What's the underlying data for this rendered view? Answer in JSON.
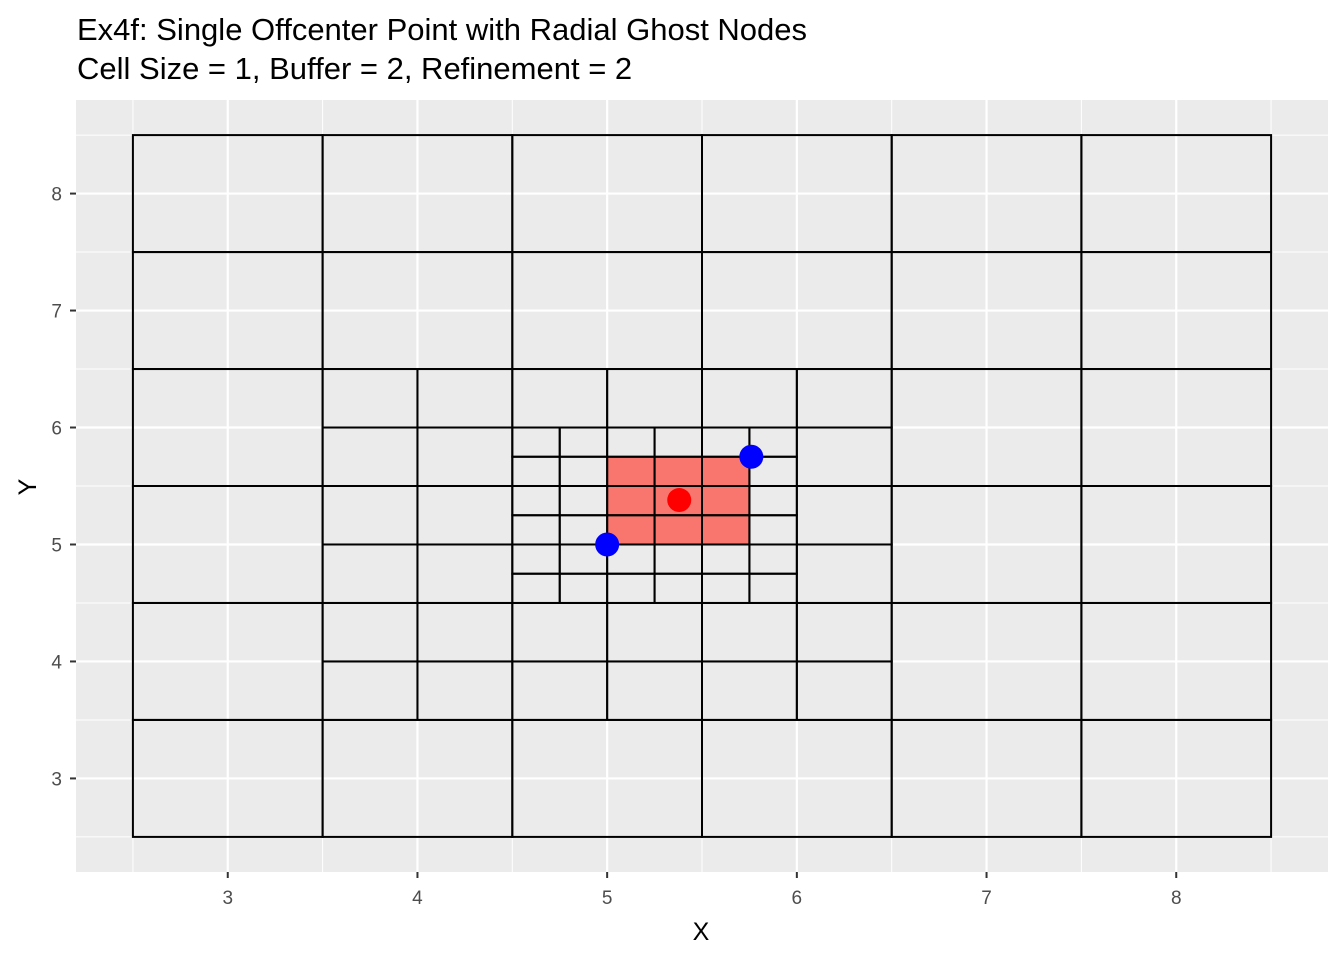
{
  "chart_data": {
    "type": "scatter",
    "title": "Ex4f: Single Offcenter Point with Radial Ghost Nodes",
    "subtitle": "Cell Size = 1, Buffer = 2, Refinement = 2",
    "xlabel": "X",
    "ylabel": "Y",
    "xlim": [
      2.2,
      8.8
    ],
    "ylim": [
      2.2,
      8.8
    ],
    "x_ticks": [
      3,
      4,
      5,
      6,
      7,
      8
    ],
    "y_ticks": [
      3,
      4,
      5,
      6,
      7,
      8
    ],
    "grid": true,
    "colors": {
      "panel_background": "#ebebeb",
      "gridline": "#ffffff",
      "cell_outline": "#000000",
      "highlight_fill": "#f8766d",
      "point": "#ff0000",
      "ghost_node": "#0000ff"
    },
    "cell_levels": [
      {
        "size": 1,
        "x_start": 2.5,
        "y_start": 2.5,
        "cols": 6,
        "rows": 6,
        "skip": [
          3.5,
          6.5,
          3.5,
          6.5
        ]
      },
      {
        "size": 0.5,
        "x_start": 3.5,
        "y_start": 3.5,
        "cols": 6,
        "rows": 6,
        "skip": [
          4.5,
          6.0,
          4.5,
          6.0
        ]
      },
      {
        "size": 0.25,
        "x_start": 4.5,
        "y_start": 4.5,
        "cols": 6,
        "rows": 6,
        "skip": null
      }
    ],
    "highlight_cell": {
      "x0": 5.0,
      "x1": 5.75,
      "y0": 5.0,
      "y1": 5.75
    },
    "points": [
      {
        "series": "point",
        "x": 5.38,
        "y": 5.38
      }
    ],
    "ghost_nodes": [
      {
        "series": "ghost",
        "x": 5.0,
        "y": 5.0
      },
      {
        "series": "ghost",
        "x": 5.76,
        "y": 5.75
      }
    ]
  }
}
